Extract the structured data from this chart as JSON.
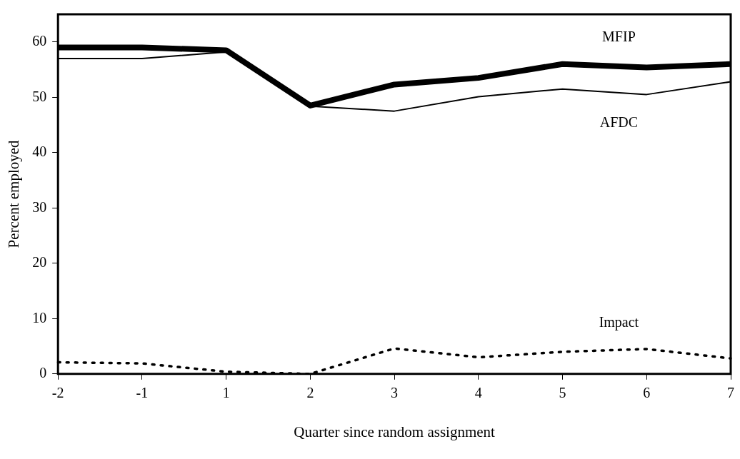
{
  "chart_data": {
    "type": "line",
    "xlabel": "Quarter since random assignment",
    "ylabel": "Percent employed",
    "categories": [
      "-2",
      "-1",
      "1",
      "2",
      "3",
      "4",
      "5",
      "6",
      "7"
    ],
    "ylim": [
      0,
      65
    ],
    "yticks": [
      0,
      10,
      20,
      30,
      40,
      50,
      60
    ],
    "grid": false,
    "legend": false,
    "marker": "none",
    "series": [
      {
        "name": "MFIP",
        "color": "#000000",
        "line_style": "solid",
        "values": [
          59,
          59,
          58.5,
          48.5,
          52.3,
          53.5,
          56,
          55.4,
          56
        ]
      },
      {
        "name": "AFDC",
        "color": "#000000",
        "line_style": "solid",
        "values": [
          57,
          57,
          58.2,
          48.4,
          47.5,
          50.1,
          51.5,
          50.5,
          52.8
        ]
      },
      {
        "name": "Impact",
        "color": "#000000",
        "line_style": "dotted",
        "values": [
          2.1,
          1.9,
          0.4,
          0,
          4.6,
          3,
          4,
          4.5,
          2.8
        ]
      }
    ]
  }
}
